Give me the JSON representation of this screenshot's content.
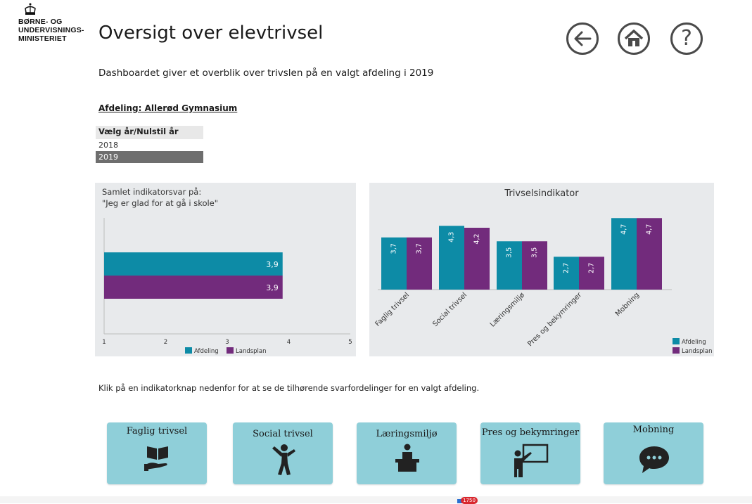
{
  "logo": {
    "text_line1": "BØRNE- OG",
    "text_line2": "UNDERVISNINGS-",
    "text_line3": "MINISTERIET"
  },
  "header": {
    "title": "Oversigt over elevtrivsel",
    "subtitle": "Dashboardet giver et overblik over trivslen på en valgt afdeling i 2019",
    "nav": [
      {
        "name": "back-arrow-icon"
      },
      {
        "name": "home-icon"
      },
      {
        "name": "help-icon",
        "label": "?"
      }
    ]
  },
  "department": "Afdeling: Allerød Gymnasium",
  "year_slicer": {
    "header": "Vælg år/Nulstil år",
    "options": [
      "2018",
      "2019"
    ],
    "selected": "2019"
  },
  "colors": {
    "afdeling": "#0d8ba6",
    "landsplan": "#722b7c",
    "panel_bg": "#e8eaec",
    "button_bg": "#8fcfd9"
  },
  "chart_data": [
    {
      "type": "bar",
      "orientation": "horizontal",
      "title_line1": "Samlet indikatorsvar på:",
      "title_line2": "\"Jeg er glad for at gå i skole\"",
      "series": [
        {
          "name": "Afdeling",
          "values": [
            3.9
          ],
          "labels": [
            "3,9"
          ]
        },
        {
          "name": "Landsplan",
          "values": [
            3.9
          ],
          "labels": [
            "3,9"
          ]
        }
      ],
      "xlim": [
        1,
        5
      ],
      "x_ticks": [
        "1",
        "2",
        "3",
        "4",
        "5"
      ],
      "legend": "bottom"
    },
    {
      "type": "bar",
      "title": "Trivselsindikator",
      "categories": [
        "Faglig trivsel",
        "Social trivsel",
        "Læringsmiljø",
        "Pres og bekymringer",
        "Mobning"
      ],
      "series": [
        {
          "name": "Afdeling",
          "values": [
            3.7,
            4.3,
            3.5,
            2.7,
            4.7
          ],
          "labels": [
            "3,7",
            "4,3",
            "3,5",
            "2,7",
            "4,7"
          ]
        },
        {
          "name": "Landsplan",
          "values": [
            3.7,
            4.2,
            3.5,
            2.7,
            4.7
          ],
          "labels": [
            "3,7",
            "4,2",
            "3,5",
            "2,7",
            "4,7"
          ]
        }
      ],
      "ylim": [
        1,
        5
      ],
      "legend": "bottom-right"
    }
  ],
  "instruction": "Klik på en indikatorknap nedenfor for at se de tilhørende svarfordelinger for en valgt afdeling.",
  "indicator_buttons": [
    {
      "label": "Faglig trivsel",
      "icon": "book-hand-icon"
    },
    {
      "label": "Social trivsel",
      "icon": "person-cheer-icon"
    },
    {
      "label": "Læringsmiljø",
      "icon": "student-desk-icon"
    },
    {
      "label": "Pres og bekymringer",
      "icon": "teacher-board-icon"
    },
    {
      "label": "Mobning",
      "icon": "speech-bubble-icon"
    }
  ],
  "notification": {
    "count": "1750"
  }
}
